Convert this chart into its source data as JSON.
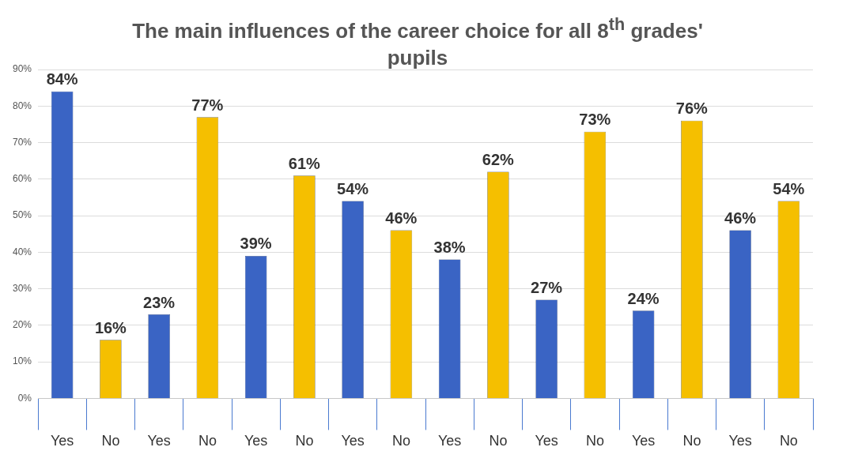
{
  "chart_data": {
    "type": "bar",
    "title": "The main influences of the career choice  for all 8$^{th}$ grades' pupils",
    "categories": [
      "Yes",
      "No",
      "Yes",
      "No",
      "Yes",
      "No",
      "Yes",
      "No",
      "Yes",
      "No",
      "Yes",
      "No",
      "Yes",
      "No",
      "Yes",
      "No"
    ],
    "values": [
      84,
      16,
      23,
      77,
      39,
      61,
      54,
      46,
      38,
      62,
      27,
      73,
      24,
      76,
      46,
      54
    ],
    "colors": [
      "#3a64c4",
      "#f5bf00",
      "#3a64c4",
      "#f5bf00",
      "#3a64c4",
      "#f5bf00",
      "#3a64c4",
      "#f5bf00",
      "#3a64c4",
      "#f5bf00",
      "#3a64c4",
      "#f5bf00",
      "#3a64c4",
      "#f5bf00",
      "#3a64c4",
      "#f5bf00"
    ],
    "value_labels": [
      "84%",
      "16%",
      "23%",
      "77%",
      "39%",
      "61%",
      "54%",
      "46%",
      "38%",
      "62%",
      "27%",
      "73%",
      "24%",
      "76%",
      "46%",
      "54%"
    ],
    "ylim": [
      0,
      90
    ],
    "yticks": [
      {
        "value": 0,
        "label": "0%"
      },
      {
        "value": 10,
        "label": "10%"
      },
      {
        "value": 20,
        "label": "20%"
      },
      {
        "value": 30,
        "label": "30%"
      },
      {
        "value": 40,
        "label": "40%"
      },
      {
        "value": 50,
        "label": "50%"
      },
      {
        "value": 60,
        "label": "60%"
      },
      {
        "value": 70,
        "label": "70%"
      },
      {
        "value": 80,
        "label": "80%"
      },
      {
        "value": 90,
        "label": "90%"
      }
    ],
    "grid": "y",
    "legend": false
  }
}
